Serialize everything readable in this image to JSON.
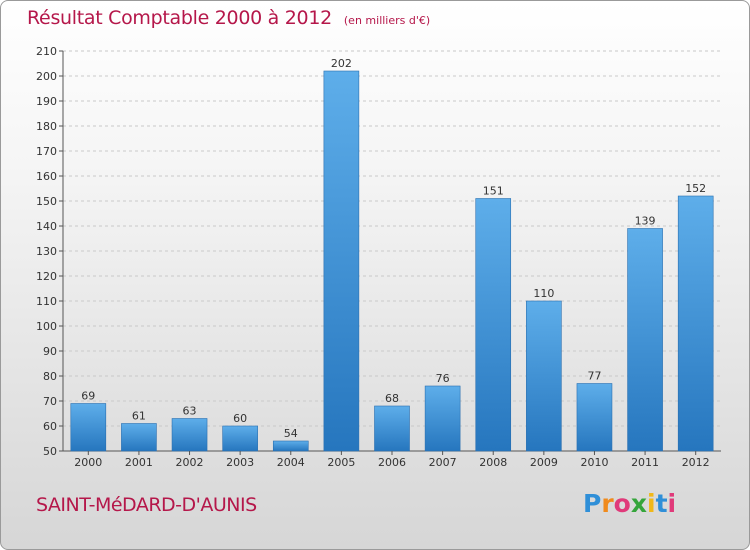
{
  "chart_data": {
    "type": "bar",
    "title": "Résultat Comptable 2000 à 2012",
    "subtitle": "(en milliers d'€)",
    "categories": [
      "2000",
      "2001",
      "2002",
      "2003",
      "2004",
      "2005",
      "2006",
      "2007",
      "2008",
      "2009",
      "2010",
      "2011",
      "2012"
    ],
    "values": [
      69,
      61,
      63,
      60,
      54,
      202,
      68,
      76,
      151,
      110,
      77,
      139,
      152
    ],
    "ylim": [
      50,
      210
    ],
    "yticks": [
      50,
      60,
      70,
      80,
      90,
      100,
      110,
      120,
      130,
      140,
      150,
      160,
      170,
      180,
      190,
      200,
      210
    ],
    "grid": true,
    "xlabel": "",
    "ylabel": "",
    "bar_color": "#3a8fd6"
  },
  "footer": {
    "commune": "SAINT-MéDARD-D'AUNIS",
    "logo_letters": [
      "P",
      "r",
      "o",
      "x",
      "i",
      "t",
      "i"
    ],
    "logo_colors": [
      "#2f8fd8",
      "#f08a1c",
      "#e03a7a",
      "#35a53b",
      "#f0b819",
      "#2f8fd8",
      "#e03a7a"
    ]
  }
}
